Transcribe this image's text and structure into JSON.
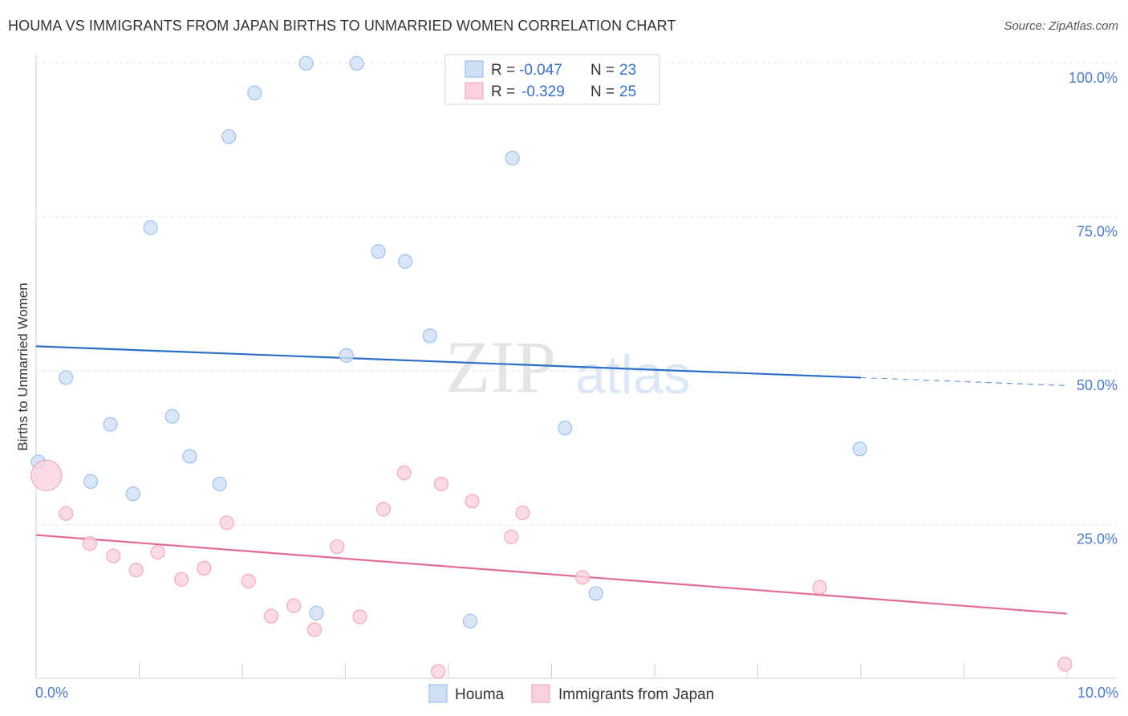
{
  "header": {
    "title": "HOUMA VS IMMIGRANTS FROM JAPAN BIRTHS TO UNMARRIED WOMEN CORRELATION CHART",
    "source": "Source: ZipAtlas.com"
  },
  "watermark": {
    "zip": "ZIP",
    "atlas": "atlas"
  },
  "stats": [
    {
      "r_label": "R =",
      "r": "-0.047",
      "n_label": "N =",
      "n": "23"
    },
    {
      "r_label": "R =",
      "r": "-0.329",
      "n_label": "N =",
      "n": "25"
    }
  ],
  "chart_data": {
    "type": "scatter",
    "title": "HOUMA VS IMMIGRANTS FROM JAPAN BIRTHS TO UNMARRIED WOMEN CORRELATION CHART",
    "ylabel": "Births to Unmarried Women",
    "xlim": [
      0,
      10
    ],
    "ylim": [
      0,
      100
    ],
    "x_ticks": [
      "0.0%",
      "10.0%"
    ],
    "y_ticks": [
      {
        "value": 100,
        "label": "100.0%"
      },
      {
        "value": 75,
        "label": "75.0%"
      },
      {
        "value": 50,
        "label": "50.0%"
      },
      {
        "value": 25,
        "label": "25.0%"
      }
    ],
    "grid": true,
    "legend_position": "bottom-center",
    "series": [
      {
        "name": "Houma",
        "color": "#9ec0ea",
        "fill": "#cfe0f5",
        "line_color": "#2c6fcb",
        "trend": {
          "x0": 0,
          "y0": 54.0,
          "x1": 8.0,
          "y1": 48.9,
          "dash_to": 10,
          "dash_y": 47.6
        },
        "points": [
          [
            0.02,
            35.2
          ],
          [
            0.29,
            48.9
          ],
          [
            0.53,
            32.0
          ],
          [
            0.72,
            41.3
          ],
          [
            0.94,
            30.0
          ],
          [
            1.11,
            73.3
          ],
          [
            1.32,
            42.6
          ],
          [
            1.49,
            36.1
          ],
          [
            1.78,
            31.6
          ],
          [
            1.87,
            88.1
          ],
          [
            2.12,
            95.2
          ],
          [
            2.62,
            100.0
          ],
          [
            2.72,
            10.6
          ],
          [
            3.01,
            52.5
          ],
          [
            3.11,
            100.0
          ],
          [
            3.32,
            69.4
          ],
          [
            3.58,
            67.8
          ],
          [
            3.82,
            55.7
          ],
          [
            4.21,
            9.3
          ],
          [
            4.62,
            84.6
          ],
          [
            5.13,
            40.7
          ],
          [
            5.43,
            13.8
          ],
          [
            7.99,
            37.3
          ]
        ]
      },
      {
        "name": "Immigrants from Japan",
        "color": "#f2a9bf",
        "fill": "#f9d1dd",
        "line_color": "#e26a93",
        "trend": {
          "x0": 0,
          "y0": 23.3,
          "x1": 10,
          "y1": 10.5
        },
        "points": [
          [
            0.1,
            33.0
          ],
          [
            0.29,
            26.8
          ],
          [
            0.52,
            21.9
          ],
          [
            0.75,
            19.9
          ],
          [
            0.97,
            17.6
          ],
          [
            1.18,
            20.5
          ],
          [
            1.41,
            16.1
          ],
          [
            1.63,
            17.9
          ],
          [
            1.85,
            25.3
          ],
          [
            2.06,
            15.8
          ],
          [
            2.28,
            10.1
          ],
          [
            2.5,
            11.8
          ],
          [
            2.7,
            7.9
          ],
          [
            2.92,
            21.4
          ],
          [
            3.14,
            10.0
          ],
          [
            3.37,
            27.5
          ],
          [
            3.57,
            33.4
          ],
          [
            3.9,
            1.1
          ],
          [
            3.93,
            31.6
          ],
          [
            4.23,
            28.8
          ],
          [
            4.61,
            23.0
          ],
          [
            4.72,
            26.9
          ],
          [
            5.3,
            16.4
          ],
          [
            7.6,
            14.8
          ],
          [
            9.98,
            2.3
          ]
        ]
      }
    ]
  }
}
